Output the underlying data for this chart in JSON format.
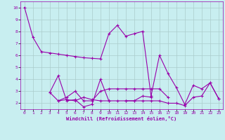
{
  "xlabel": "Windchill (Refroidissement éolien,°C)",
  "background_color": "#c8eef0",
  "line_color": "#9900aa",
  "grid_color": "#aacccc",
  "x_ticks": [
    0,
    1,
    2,
    3,
    4,
    5,
    6,
    7,
    8,
    9,
    10,
    11,
    12,
    13,
    14,
    15,
    16,
    17,
    18,
    19,
    20,
    21,
    22,
    23
  ],
  "y_ticks": [
    2,
    3,
    4,
    5,
    6,
    7,
    8,
    9,
    10
  ],
  "ylim": [
    1.5,
    10.5
  ],
  "xlim": [
    -0.5,
    23.5
  ],
  "series": [
    [
      10,
      7.5,
      6.3,
      6.2,
      6.1,
      6.0,
      5.9,
      5.8,
      5.75,
      5.7,
      7.8,
      8.5,
      7.6,
      7.8,
      8.0,
      2.6,
      6.0,
      4.5,
      3.3,
      1.9,
      3.5,
      3.2,
      3.7,
      2.4
    ],
    [
      null,
      null,
      null,
      2.9,
      4.3,
      2.2,
      2.3,
      1.7,
      1.9,
      4.0,
      2.2,
      null,
      2.2,
      2.2,
      2.6,
      2.5,
      null,
      null,
      null,
      null,
      null,
      null,
      null,
      null
    ],
    [
      null,
      null,
      null,
      2.9,
      2.2,
      2.5,
      3.0,
      2.2,
      2.2,
      3.0,
      3.2,
      3.2,
      3.2,
      3.2,
      3.2,
      3.2,
      3.2,
      2.5,
      null,
      null,
      null,
      null,
      null,
      null
    ],
    [
      null,
      null,
      null,
      null,
      2.2,
      2.3,
      2.2,
      2.5,
      2.3,
      2.2,
      2.2,
      2.2,
      2.2,
      2.2,
      2.2,
      2.2,
      2.2,
      2.0,
      2.0,
      1.8,
      2.5,
      2.6,
      3.7,
      2.4
    ]
  ]
}
